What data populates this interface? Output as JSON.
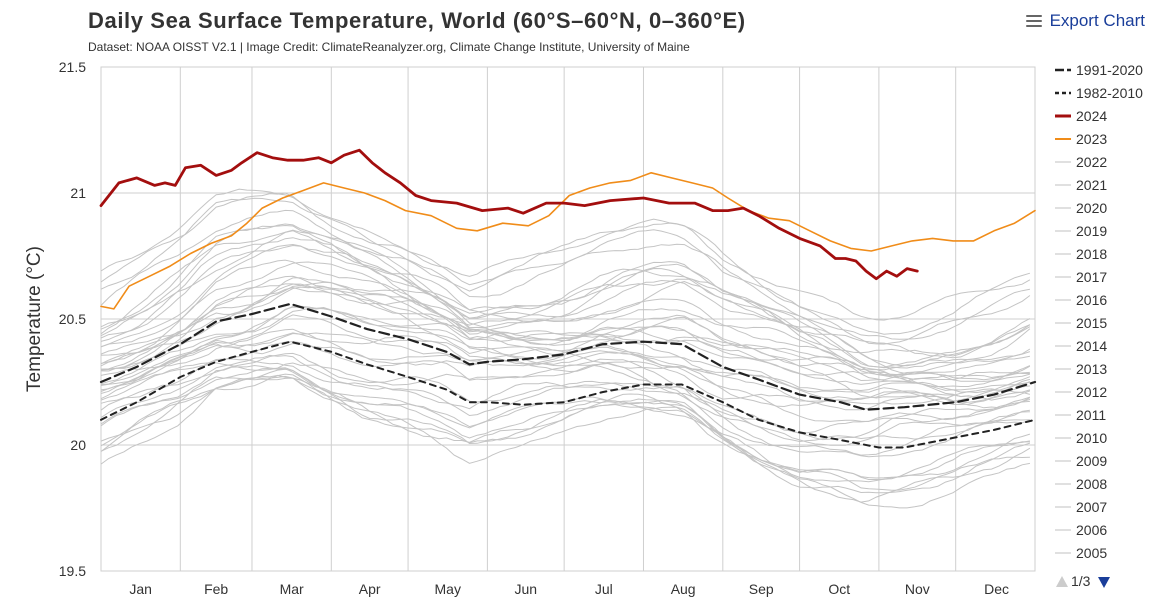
{
  "header": {
    "title": "Daily Sea Surface Temperature, World (60°S–60°N, 0–360°E)",
    "subtitle": "Dataset: NOAA OISST V2.1 | Image Credit: ClimateReanalyzer.org, Climate Change Institute, University of Maine",
    "export_label": "Export Chart",
    "export_icon": "hamburger-menu-icon"
  },
  "legend_pager": {
    "text": "1/3",
    "up_icon": "triangle-up-icon",
    "down_icon": "triangle-down-icon"
  },
  "chart_data": {
    "type": "line",
    "title": "Daily Sea Surface Temperature, World (60°S–60°N, 0–360°E)",
    "xlabel": "",
    "ylabel": "Temperature (°C)",
    "ylim": [
      19.5,
      21.5
    ],
    "yticks": [
      19.5,
      20,
      20.5,
      21,
      21.5
    ],
    "xlim": [
      1,
      366
    ],
    "month_labels": [
      "Jan",
      "Feb",
      "Mar",
      "Apr",
      "May",
      "Jun",
      "Jul",
      "Aug",
      "Sep",
      "Oct",
      "Nov",
      "Dec"
    ],
    "month_starts": [
      1,
      32,
      60,
      91,
      121,
      152,
      182,
      213,
      244,
      274,
      305,
      335
    ],
    "grid": true,
    "legend_position": "right",
    "series": [
      {
        "name": "1991-2020",
        "color": "#222222",
        "style": "longdash",
        "width": 2.2,
        "points": [
          [
            1,
            20.25
          ],
          [
            15,
            20.31
          ],
          [
            32,
            20.4
          ],
          [
            46,
            20.49
          ],
          [
            60,
            20.52
          ],
          [
            75,
            20.56
          ],
          [
            91,
            20.51
          ],
          [
            105,
            20.46
          ],
          [
            121,
            20.42
          ],
          [
            136,
            20.37
          ],
          [
            145,
            20.32
          ],
          [
            152,
            20.33
          ],
          [
            166,
            20.34
          ],
          [
            182,
            20.36
          ],
          [
            197,
            20.4
          ],
          [
            213,
            20.41
          ],
          [
            228,
            20.4
          ],
          [
            244,
            20.31
          ],
          [
            258,
            20.26
          ],
          [
            274,
            20.2
          ],
          [
            290,
            20.17
          ],
          [
            300,
            20.14
          ],
          [
            315,
            20.15
          ],
          [
            335,
            20.17
          ],
          [
            350,
            20.2
          ],
          [
            366,
            20.25
          ]
        ]
      },
      {
        "name": "1982-2010",
        "color": "#222222",
        "style": "dash",
        "width": 2,
        "points": [
          [
            1,
            20.1
          ],
          [
            15,
            20.17
          ],
          [
            32,
            20.27
          ],
          [
            46,
            20.33
          ],
          [
            60,
            20.37
          ],
          [
            75,
            20.41
          ],
          [
            91,
            20.37
          ],
          [
            105,
            20.32
          ],
          [
            121,
            20.27
          ],
          [
            136,
            20.22
          ],
          [
            145,
            20.17
          ],
          [
            152,
            20.17
          ],
          [
            166,
            20.16
          ],
          [
            182,
            20.17
          ],
          [
            197,
            20.21
          ],
          [
            213,
            20.24
          ],
          [
            228,
            20.24
          ],
          [
            244,
            20.17
          ],
          [
            258,
            20.1
          ],
          [
            274,
            20.05
          ],
          [
            290,
            20.02
          ],
          [
            305,
            19.99
          ],
          [
            315,
            19.99
          ],
          [
            335,
            20.03
          ],
          [
            350,
            20.06
          ],
          [
            366,
            20.1
          ]
        ]
      },
      {
        "name": "2024",
        "color": "#a30e0e",
        "style": "solid",
        "width": 2.8,
        "points": [
          [
            1,
            20.95
          ],
          [
            8,
            21.04
          ],
          [
            15,
            21.06
          ],
          [
            22,
            21.03
          ],
          [
            26,
            21.04
          ],
          [
            30,
            21.03
          ],
          [
            34,
            21.1
          ],
          [
            40,
            21.11
          ],
          [
            46,
            21.07
          ],
          [
            52,
            21.09
          ],
          [
            56,
            21.12
          ],
          [
            62,
            21.16
          ],
          [
            68,
            21.14
          ],
          [
            74,
            21.13
          ],
          [
            80,
            21.13
          ],
          [
            86,
            21.14
          ],
          [
            91,
            21.12
          ],
          [
            96,
            21.15
          ],
          [
            102,
            21.17
          ],
          [
            107,
            21.12
          ],
          [
            112,
            21.08
          ],
          [
            118,
            21.04
          ],
          [
            124,
            20.99
          ],
          [
            130,
            20.97
          ],
          [
            140,
            20.96
          ],
          [
            150,
            20.93
          ],
          [
            160,
            20.94
          ],
          [
            166,
            20.92
          ],
          [
            175,
            20.96
          ],
          [
            182,
            20.96
          ],
          [
            190,
            20.95
          ],
          [
            200,
            20.97
          ],
          [
            213,
            20.98
          ],
          [
            223,
            20.96
          ],
          [
            233,
            20.96
          ],
          [
            240,
            20.93
          ],
          [
            246,
            20.93
          ],
          [
            252,
            20.94
          ],
          [
            258,
            20.91
          ],
          [
            266,
            20.86
          ],
          [
            274,
            20.82
          ],
          [
            282,
            20.79
          ],
          [
            288,
            20.74
          ],
          [
            292,
            20.74
          ],
          [
            296,
            20.73
          ],
          [
            300,
            20.69
          ],
          [
            304,
            20.66
          ],
          [
            308,
            20.69
          ],
          [
            312,
            20.67
          ],
          [
            316,
            20.7
          ],
          [
            320,
            20.69
          ]
        ]
      },
      {
        "name": "2023",
        "color": "#f08c19",
        "style": "solid",
        "width": 1.6,
        "points": [
          [
            1,
            20.55
          ],
          [
            6,
            20.54
          ],
          [
            12,
            20.63
          ],
          [
            20,
            20.67
          ],
          [
            28,
            20.71
          ],
          [
            36,
            20.76
          ],
          [
            44,
            20.8
          ],
          [
            52,
            20.83
          ],
          [
            58,
            20.88
          ],
          [
            64,
            20.94
          ],
          [
            72,
            20.98
          ],
          [
            80,
            21.01
          ],
          [
            88,
            21.04
          ],
          [
            96,
            21.02
          ],
          [
            104,
            21.0
          ],
          [
            112,
            20.97
          ],
          [
            120,
            20.93
          ],
          [
            130,
            20.91
          ],
          [
            140,
            20.86
          ],
          [
            148,
            20.85
          ],
          [
            158,
            20.88
          ],
          [
            168,
            20.87
          ],
          [
            176,
            20.91
          ],
          [
            184,
            20.99
          ],
          [
            192,
            21.02
          ],
          [
            200,
            21.04
          ],
          [
            208,
            21.05
          ],
          [
            216,
            21.08
          ],
          [
            224,
            21.06
          ],
          [
            232,
            21.04
          ],
          [
            240,
            21.02
          ],
          [
            246,
            20.98
          ],
          [
            254,
            20.93
          ],
          [
            262,
            20.9
          ],
          [
            270,
            20.89
          ],
          [
            278,
            20.85
          ],
          [
            286,
            20.81
          ],
          [
            294,
            20.78
          ],
          [
            302,
            20.77
          ],
          [
            310,
            20.79
          ],
          [
            318,
            20.81
          ],
          [
            326,
            20.82
          ],
          [
            334,
            20.81
          ],
          [
            342,
            20.81
          ],
          [
            350,
            20.85
          ],
          [
            358,
            20.88
          ],
          [
            366,
            20.93
          ]
        ]
      }
    ],
    "legend_items": [
      "1991-2020",
      "1982-2010",
      "2024",
      "2023",
      "2022",
      "2021",
      "2020",
      "2019",
      "2018",
      "2017",
      "2016",
      "2015",
      "2014",
      "2013",
      "2012",
      "2011",
      "2010",
      "2009",
      "2008",
      "2007",
      "2006",
      "2005"
    ],
    "background_series_note": "",
    "background_color": "#c4c4c4"
  }
}
